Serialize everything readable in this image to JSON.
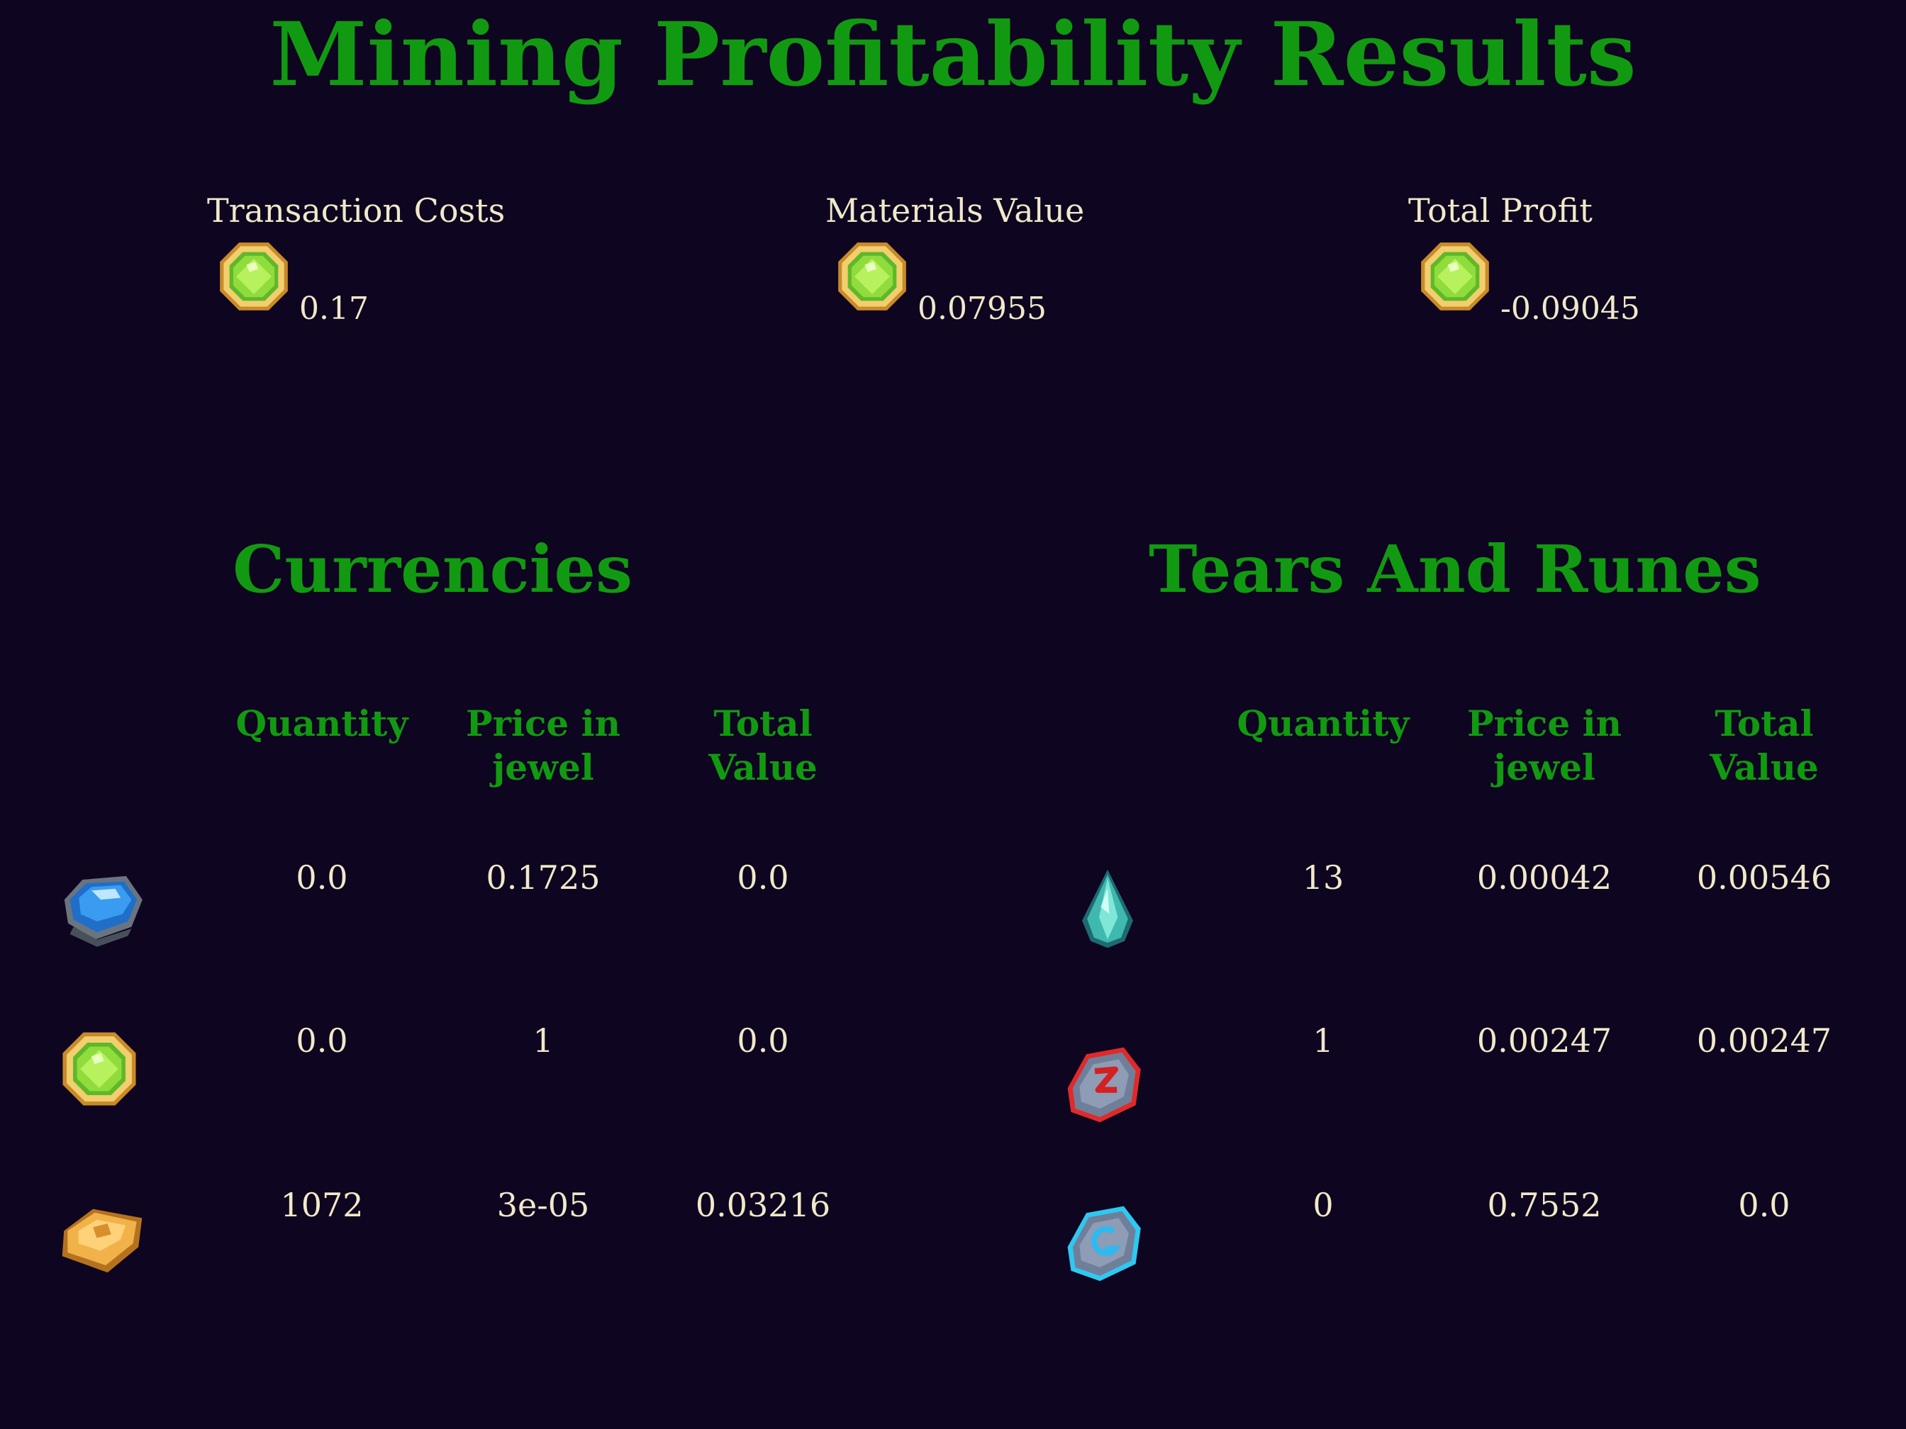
{
  "title": "Mining Profitability Results",
  "summary": {
    "transaction_costs": {
      "label": "Transaction Costs",
      "value": "0.17",
      "icon": "jewel-icon"
    },
    "materials_value": {
      "label": "Materials Value",
      "value": "0.07955",
      "icon": "jewel-icon"
    },
    "total_profit": {
      "label": "Total Profit",
      "value": "-0.09045",
      "icon": "jewel-icon"
    }
  },
  "currencies": {
    "title": "Currencies",
    "headers": [
      "Quantity",
      "Price in jewel",
      "Total Value"
    ],
    "rows": [
      {
        "icon": "blue-gem-icon",
        "quantity": "0.0",
        "price": "0.1725",
        "total": "0.0"
      },
      {
        "icon": "jewel-icon",
        "quantity": "0.0",
        "price": "1",
        "total": "0.0"
      },
      {
        "icon": "gold-bar-icon",
        "quantity": "1072",
        "price": "3e-05",
        "total": "0.03216"
      }
    ]
  },
  "tears_and_runes": {
    "title": "Tears And Runes",
    "headers": [
      "Quantity",
      "Price in jewel",
      "Total Value"
    ],
    "rows": [
      {
        "icon": "tear-icon",
        "quantity": "13",
        "price": "0.00042",
        "total": "0.00546"
      },
      {
        "icon": "red-rune-icon",
        "quantity": "1",
        "price": "0.00247",
        "total": "0.00247"
      },
      {
        "icon": "blue-rune-icon",
        "quantity": "0",
        "price": "0.7552",
        "total": "0.0"
      }
    ]
  },
  "colors": {
    "background": "#0e0520",
    "heading": "#119a11",
    "text": "#f0e8c8"
  }
}
